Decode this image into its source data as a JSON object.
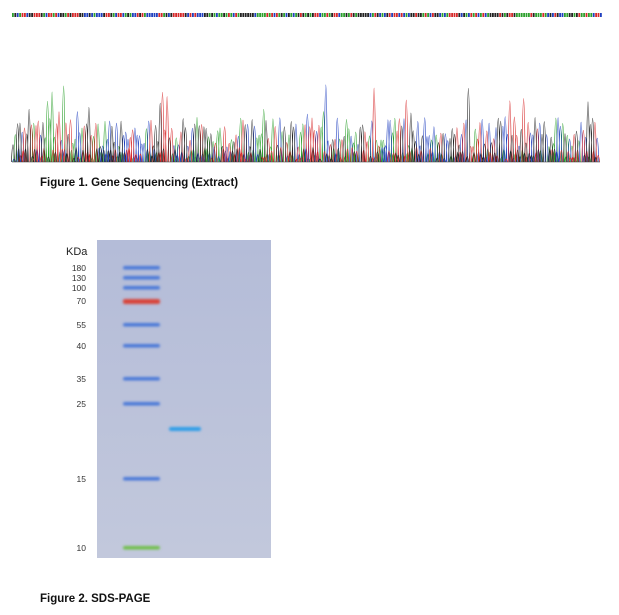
{
  "figures": [
    {
      "caption": "Figure 1. Gene Sequencing (Extract)"
    },
    {
      "caption": "Figure 2. SDS-PAGE",
      "unit": "KDa",
      "markers": [
        "180",
        "130",
        "100",
        "70",
        "55",
        "40",
        "35",
        "25",
        "15",
        "10"
      ]
    }
  ]
}
